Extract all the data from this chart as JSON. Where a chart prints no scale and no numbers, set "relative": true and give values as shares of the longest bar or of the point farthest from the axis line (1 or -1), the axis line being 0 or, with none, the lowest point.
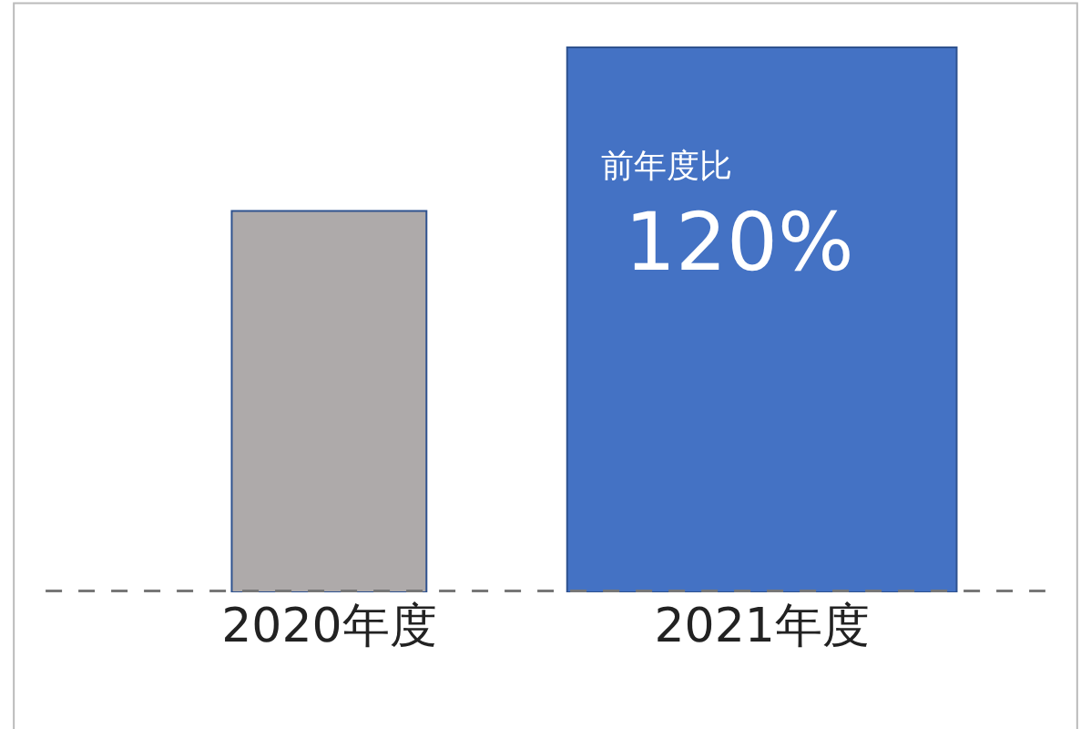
{
  "chart_data": {
    "type": "bar",
    "relative": true,
    "categories": [
      "2020年度",
      "2021年度"
    ],
    "values": [
      0.7,
      1
    ],
    "colors": [
      "#aeaaaa",
      "#4472c4"
    ],
    "annotations": [
      "前年度比",
      "120%"
    ],
    "legend": false
  }
}
